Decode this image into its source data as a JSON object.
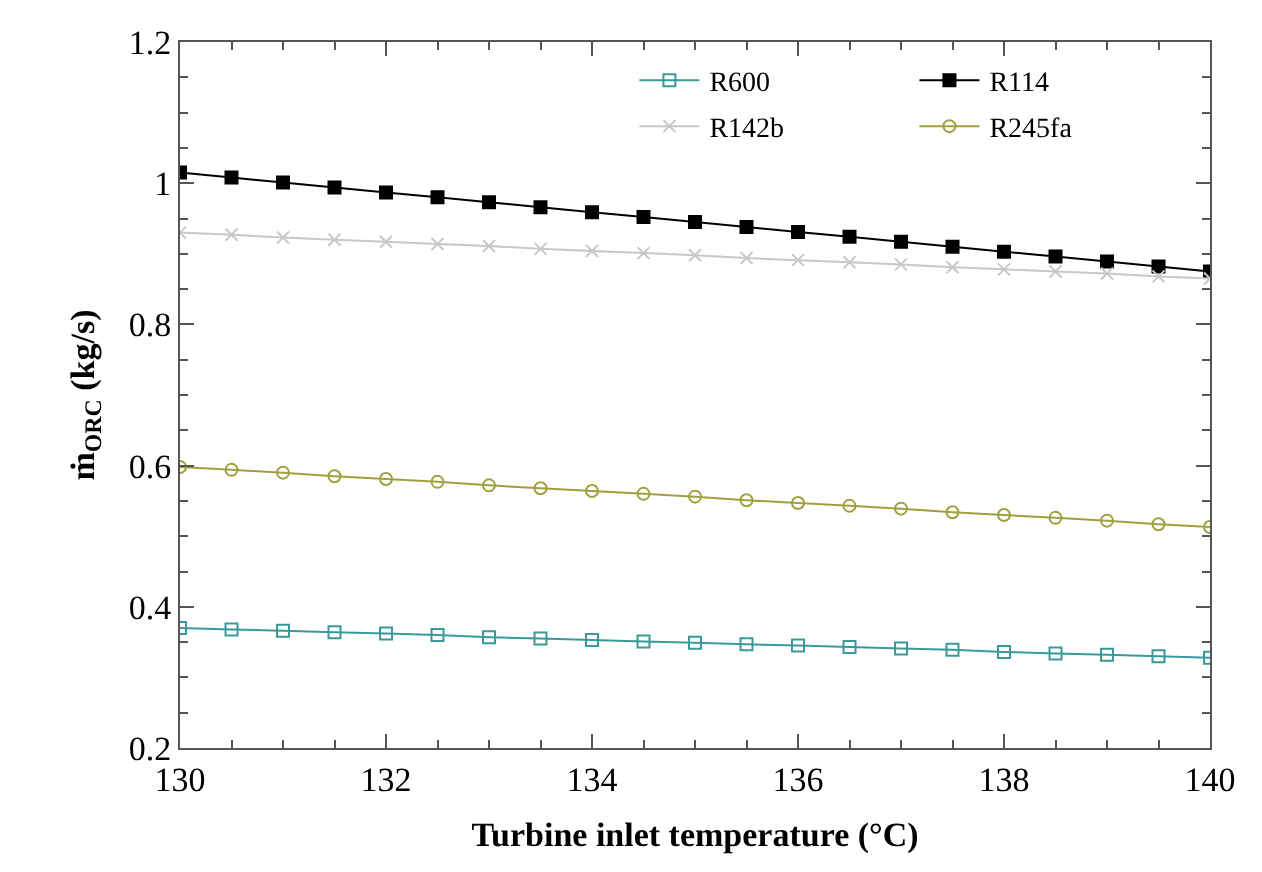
{
  "chart_data": {
    "type": "line",
    "xlabel": "Turbine inlet temperature (°C)",
    "ylabel": "ṁ$_{ORC}$ (kg/s)",
    "x": [
      130,
      130.5,
      131,
      131.5,
      132,
      132.5,
      133,
      133.5,
      134,
      134.5,
      135,
      135.5,
      136,
      136.5,
      137,
      137.5,
      138,
      138.5,
      139,
      139.5,
      140
    ],
    "xlim": [
      130,
      140
    ],
    "xticks": [
      130,
      132,
      134,
      136,
      138,
      140
    ],
    "ylim": [
      0.2,
      1.2
    ],
    "yticks": [
      0.2,
      0.4,
      0.6,
      0.8,
      1,
      1.2
    ],
    "grid": false,
    "legend": "top right",
    "line_style": "solid",
    "series": [
      {
        "name": "R600",
        "color": "#3a9a9a",
        "marker": "square",
        "values": [
          0.37,
          0.368,
          0.366,
          0.364,
          0.362,
          0.36,
          0.357,
          0.355,
          0.353,
          0.351,
          0.349,
          0.347,
          0.345,
          0.343,
          0.341,
          0.339,
          0.336,
          0.334,
          0.332,
          0.33,
          0.328
        ]
      },
      {
        "name": "R114",
        "color": "#000000",
        "marker": "square",
        "values": [
          1.015,
          1.008,
          1.001,
          0.994,
          0.987,
          0.98,
          0.973,
          0.966,
          0.959,
          0.952,
          0.945,
          0.938,
          0.931,
          0.924,
          0.917,
          0.91,
          0.903,
          0.896,
          0.889,
          0.882,
          0.875
        ]
      },
      {
        "name": "R142b",
        "color": "#c8c8c8",
        "marker": "cross",
        "values": [
          0.93,
          0.927,
          0.923,
          0.92,
          0.917,
          0.914,
          0.911,
          0.907,
          0.904,
          0.901,
          0.898,
          0.894,
          0.891,
          0.888,
          0.885,
          0.881,
          0.878,
          0.875,
          0.872,
          0.868,
          0.865
        ]
      },
      {
        "name": "R245fa",
        "color": "#a0a040",
        "marker": "circle",
        "values": [
          0.598,
          0.594,
          0.59,
          0.585,
          0.581,
          0.577,
          0.572,
          0.568,
          0.564,
          0.56,
          0.556,
          0.551,
          0.547,
          0.543,
          0.539,
          0.534,
          0.53,
          0.526,
          0.522,
          0.517,
          0.513
        ]
      }
    ]
  }
}
